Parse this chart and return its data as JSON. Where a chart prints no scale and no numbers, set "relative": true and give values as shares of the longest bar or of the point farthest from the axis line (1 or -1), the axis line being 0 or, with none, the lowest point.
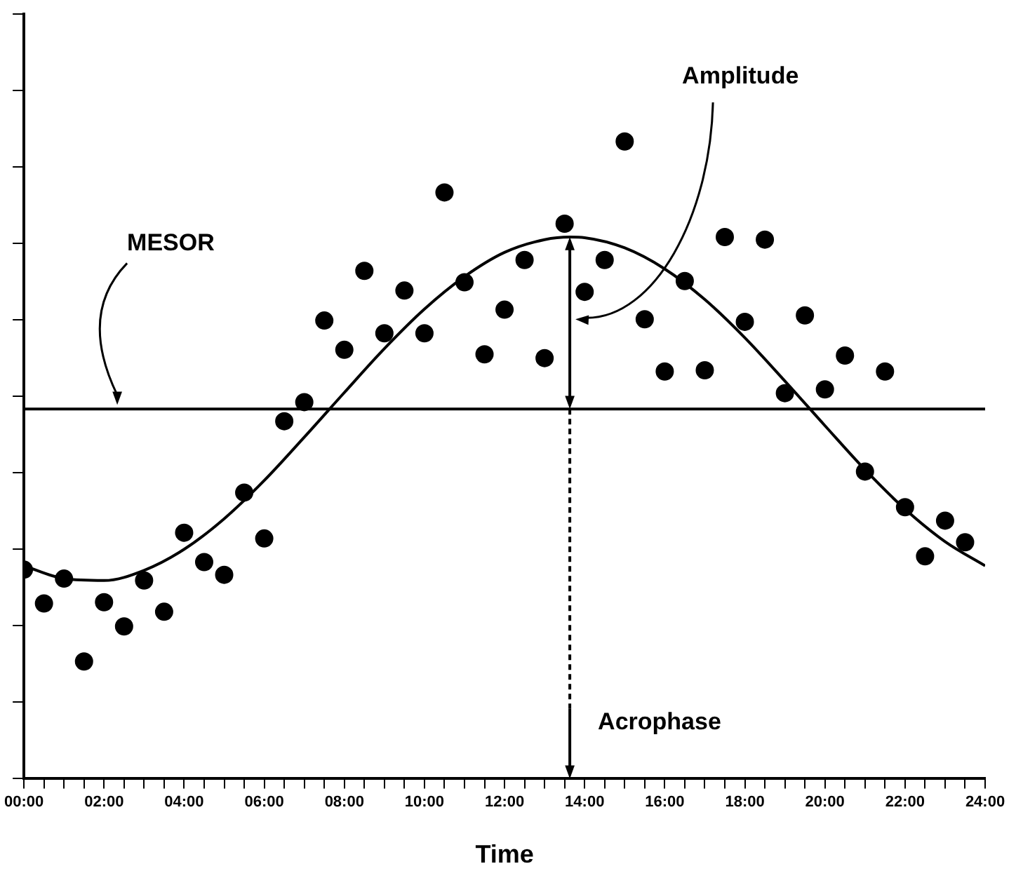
{
  "chart_data": {
    "type": "scatter",
    "xlabel": "Time",
    "relative": true,
    "xlim": [
      0,
      24
    ],
    "xticks": [
      {
        "value": 0,
        "label": "00:00"
      },
      {
        "value": 0.5,
        "label": null
      },
      {
        "value": 1,
        "label": null
      },
      {
        "value": 1.5,
        "label": null
      },
      {
        "value": 2,
        "label": "02:00"
      },
      {
        "value": 2.5,
        "label": null
      },
      {
        "value": 3,
        "label": null
      },
      {
        "value": 3.5,
        "label": null
      },
      {
        "value": 4,
        "label": "04:00"
      },
      {
        "value": 4.5,
        "label": null
      },
      {
        "value": 5,
        "label": null
      },
      {
        "value": 5.5,
        "label": null
      },
      {
        "value": 6,
        "label": "06:00"
      },
      {
        "value": 6.5,
        "label": null
      },
      {
        "value": 7,
        "label": null
      },
      {
        "value": 7.5,
        "label": null
      },
      {
        "value": 8,
        "label": "08:00"
      },
      {
        "value": 8.5,
        "label": null
      },
      {
        "value": 9,
        "label": null
      },
      {
        "value": 9.5,
        "label": null
      },
      {
        "value": 10,
        "label": "10:00"
      },
      {
        "value": 10.5,
        "label": null
      },
      {
        "value": 11,
        "label": null
      },
      {
        "value": 11.5,
        "label": null
      },
      {
        "value": 12,
        "label": "12:00"
      },
      {
        "value": 12.5,
        "label": null
      },
      {
        "value": 13,
        "label": null
      },
      {
        "value": 13.5,
        "label": null
      },
      {
        "value": 14,
        "label": "14:00"
      },
      {
        "value": 14.5,
        "label": null
      },
      {
        "value": 15,
        "label": null
      },
      {
        "value": 15.5,
        "label": null
      },
      {
        "value": 16,
        "label": "16:00"
      },
      {
        "value": 16.5,
        "label": null
      },
      {
        "value": 17,
        "label": null
      },
      {
        "value": 17.5,
        "label": null
      },
      {
        "value": 18,
        "label": "18:00"
      },
      {
        "value": 18.5,
        "label": null
      },
      {
        "value": 19,
        "label": null
      },
      {
        "value": 19.5,
        "label": null
      },
      {
        "value": 20,
        "label": "20:00"
      },
      {
        "value": 20.5,
        "label": null
      },
      {
        "value": 21,
        "label": null
      },
      {
        "value": 21.5,
        "label": null
      },
      {
        "value": 22,
        "label": "22:00"
      },
      {
        "value": 22.5,
        "label": null
      },
      {
        "value": 23,
        "label": null
      },
      {
        "value": 23.5,
        "label": null
      },
      {
        "value": 24,
        "label": "24:00"
      }
    ],
    "grid": false,
    "legend": false,
    "series": [
      {
        "type": "scatter",
        "color": "#000000",
        "marker": "circle",
        "x": [
          0,
          0.5,
          1,
          1.5,
          2,
          2.5,
          3,
          3.5,
          4,
          4.5,
          5,
          5.5,
          6,
          6.5,
          7,
          7.5,
          8,
          8.5,
          9,
          9.5,
          10,
          10.5,
          11,
          11.5,
          12,
          12.5,
          13,
          13.5,
          14,
          14.5,
          15,
          15.5,
          16,
          16.5,
          17,
          17.5,
          18,
          18.5,
          19,
          19.5,
          20,
          20.5,
          21,
          21.5,
          22,
          22.5,
          23,
          23.5
        ],
        "values": [
          0.328,
          0.275,
          0.314,
          0.184,
          0.277,
          0.239,
          0.311,
          0.262,
          0.386,
          0.34,
          0.32,
          0.449,
          0.377,
          0.561,
          0.591,
          0.719,
          0.673,
          0.797,
          0.699,
          0.766,
          0.699,
          0.92,
          0.779,
          0.666,
          0.736,
          0.814,
          0.66,
          0.871,
          0.764,
          0.814,
          1,
          0.721,
          0.639,
          0.781,
          0.641,
          0.85,
          0.717,
          0.846,
          0.605,
          0.727,
          0.611,
          0.664,
          0.482,
          0.639,
          0.426,
          0.349,
          0.405,
          0.371
        ]
      },
      {
        "type": "line",
        "color": "#000000",
        "marker": "none",
        "line_style": "solid",
        "x": [
          0,
          1,
          2,
          3,
          4,
          5,
          6,
          7,
          8,
          9,
          10,
          11,
          12,
          13,
          13.63,
          14,
          15,
          16,
          17,
          18,
          19,
          20,
          21,
          22,
          23,
          24
        ],
        "values": [
          0.334,
          0.314,
          0.311,
          0.327,
          0.36,
          0.408,
          0.468,
          0.536,
          0.606,
          0.675,
          0.737,
          0.788,
          0.826,
          0.846,
          0.85,
          0.849,
          0.833,
          0.8,
          0.752,
          0.692,
          0.624,
          0.554,
          0.485,
          0.423,
          0.372,
          0.334
        ]
      }
    ],
    "ref_lines": [
      {
        "axis": "y",
        "value": 0.58,
        "line_style": "solid"
      },
      {
        "axis": "x",
        "value": 13.63,
        "label": "Acrophase",
        "line_style": "dashed"
      }
    ],
    "annotations": [
      "MESOR",
      "Amplitude"
    ]
  }
}
